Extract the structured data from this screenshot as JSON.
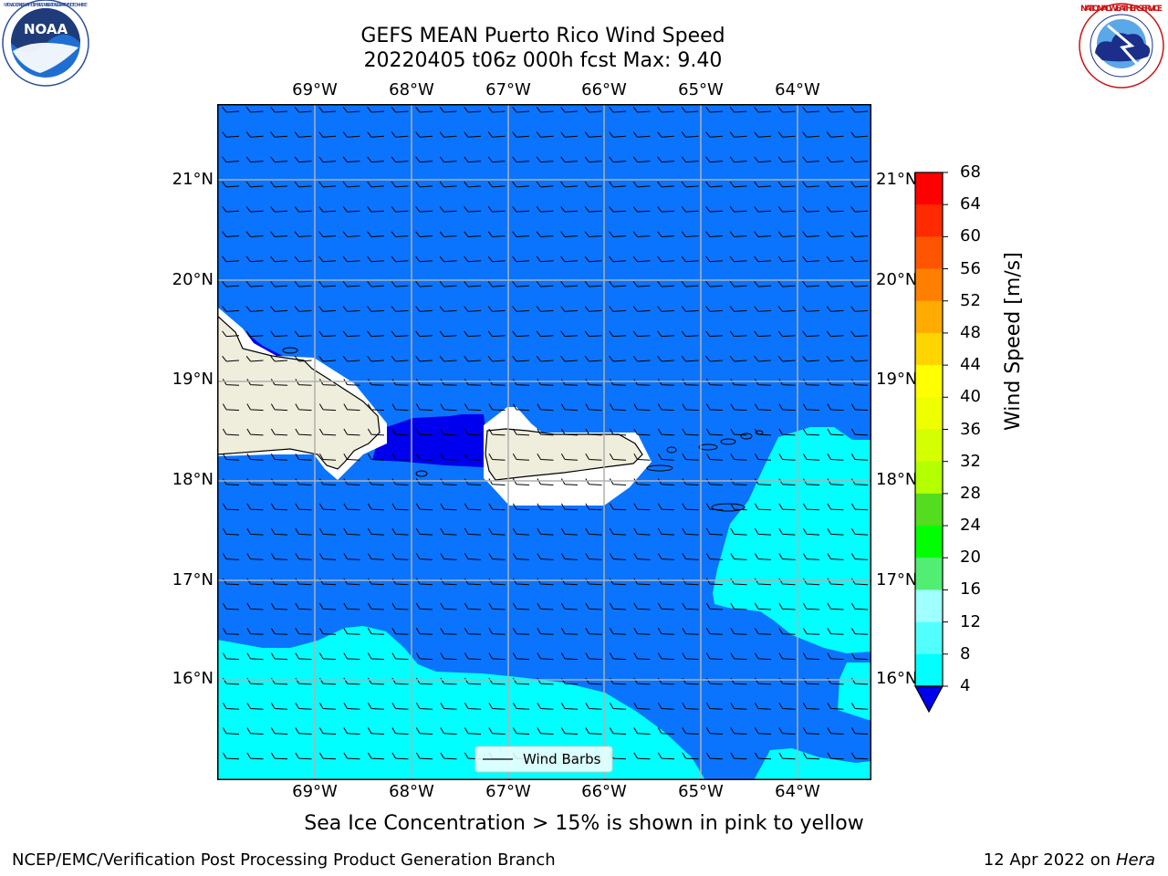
{
  "header": {
    "title_line1": "GEFS MEAN Puerto Rico Wind Speed",
    "title_line2": "20220405 t06z 000h fcst   Max: 9.40"
  },
  "logos": {
    "noaa_text": "NOAA",
    "noaa_ring_text": "NATIONAL OCEANIC AND ATMOSPHERIC ADMINISTRATION · U.S. DEPARTMENT OF COMMERCE",
    "nws_ring_text": "NATIONAL WEATHER SERVICE"
  },
  "map": {
    "lon_labels": [
      "69°W",
      "68°W",
      "67°W",
      "66°W",
      "65°W",
      "64°W"
    ],
    "lat_labels": [
      "21°N",
      "20°N",
      "19°N",
      "18°N",
      "17°N",
      "16°N"
    ],
    "legend_label": "Wind Barbs",
    "colors": {
      "ocean_4_8": "#0a74ff",
      "band_8_12": "#00ffff",
      "band_0_4": "#0000ee",
      "land": "#efeedc",
      "gridline": "#b0b0b0"
    }
  },
  "colorbar": {
    "label": "Wind Speed [m/s]",
    "ticks": [
      "68",
      "64",
      "60",
      "56",
      "52",
      "48",
      "44",
      "40",
      "36",
      "32",
      "28",
      "24",
      "20",
      "16",
      "12",
      "8",
      "4"
    ],
    "colors": [
      "#ff0000",
      "#ff2a00",
      "#ff5500",
      "#ff8000",
      "#ffab00",
      "#ffd500",
      "#ffff00",
      "#eeff00",
      "#d4ff00",
      "#b4ff00",
      "#54dd1e",
      "#00ff00",
      "#52ee74",
      "#a0ffff",
      "#52ffff",
      "#00ffff",
      "#0a74ff"
    ],
    "under_color": "#0000ee"
  },
  "note": "Sea Ice Concentration > 15% is shown in pink to yellow",
  "footer": {
    "left": "NCEP/EMC/Verification Post Processing Product Generation Branch",
    "right_prefix": "12 Apr 2022 on ",
    "right_host": "Hera"
  }
}
